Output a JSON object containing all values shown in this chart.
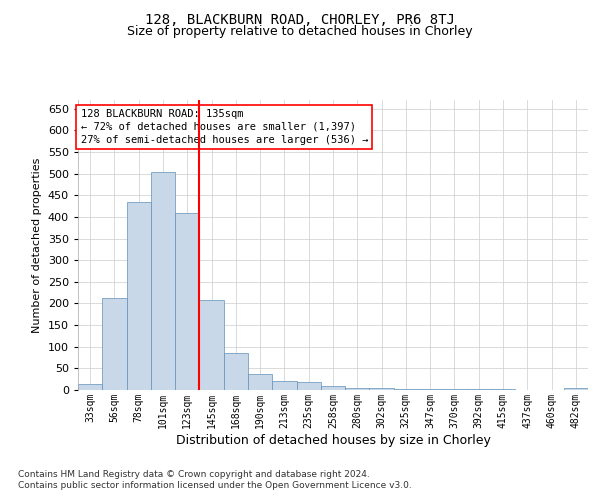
{
  "title1": "128, BLACKBURN ROAD, CHORLEY, PR6 8TJ",
  "title2": "Size of property relative to detached houses in Chorley",
  "xlabel": "Distribution of detached houses by size in Chorley",
  "ylabel": "Number of detached properties",
  "footnote1": "Contains HM Land Registry data © Crown copyright and database right 2024.",
  "footnote2": "Contains public sector information licensed under the Open Government Licence v3.0.",
  "annotation_line1": "128 BLACKBURN ROAD: 135sqm",
  "annotation_line2": "← 72% of detached houses are smaller (1,397)",
  "annotation_line3": "27% of semi-detached houses are larger (536) →",
  "bar_labels": [
    "33sqm",
    "56sqm",
    "78sqm",
    "101sqm",
    "123sqm",
    "145sqm",
    "168sqm",
    "190sqm",
    "213sqm",
    "235sqm",
    "258sqm",
    "280sqm",
    "302sqm",
    "325sqm",
    "347sqm",
    "370sqm",
    "392sqm",
    "415sqm",
    "437sqm",
    "460sqm",
    "482sqm"
  ],
  "bar_heights": [
    15,
    212,
    435,
    503,
    410,
    209,
    85,
    38,
    20,
    18,
    10,
    5,
    4,
    3,
    2,
    2,
    2,
    2,
    1,
    1,
    4
  ],
  "bar_color": "#c8d8e8",
  "bar_edge_color": "#6090b8",
  "vline_x": 4.5,
  "vline_color": "red",
  "ylim": [
    0,
    670
  ],
  "yticks": [
    0,
    50,
    100,
    150,
    200,
    250,
    300,
    350,
    400,
    450,
    500,
    550,
    600,
    650
  ],
  "annotation_box_color": "white",
  "annotation_box_edge_color": "red",
  "bg_color": "#ffffff",
  "grid_color": "#cccccc",
  "title1_fontsize": 10,
  "title2_fontsize": 9,
  "ylabel_fontsize": 8,
  "xlabel_fontsize": 9,
  "tick_fontsize": 7,
  "annotation_fontsize": 7.5,
  "footnote_fontsize": 6.5
}
